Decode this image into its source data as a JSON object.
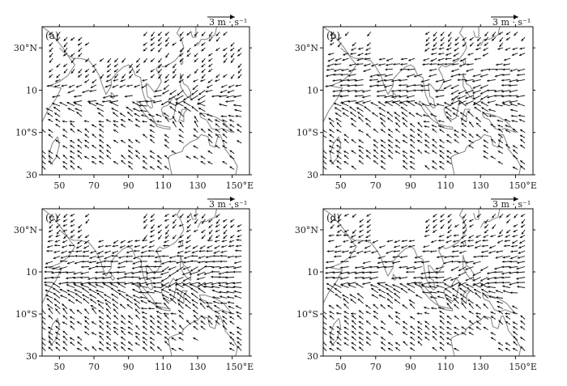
{
  "figure": {
    "panels": [
      {
        "label": "(a)",
        "reference_vector": "3 m · s⁻¹",
        "lon_ticks": [
          "50",
          "70",
          "90",
          "110",
          "130",
          "150°E"
        ],
        "lat_ticks": [
          "30°N",
          "10",
          "10°S",
          "30"
        ],
        "flow": {
          "westerly_band_lat": [
            -5,
            15
          ],
          "strength": 0.9,
          "coverage": 0.55
        }
      },
      {
        "label": "(b)",
        "reference_vector": "3 m · s⁻¹",
        "lon_ticks": [
          "50",
          "70",
          "90",
          "110",
          "130",
          "150°E"
        ],
        "lat_ticks": [
          "30°N",
          "10",
          "10°S",
          "30"
        ],
        "flow": {
          "westerly_band_lat": [
            -8,
            30
          ],
          "strength": 1.0,
          "coverage": 0.65
        }
      },
      {
        "label": "(c)",
        "reference_vector": "3 m · s⁻¹",
        "lon_ticks": [
          "50",
          "70",
          "90",
          "110",
          "130",
          "150°E"
        ],
        "lat_ticks": [
          "30°N",
          "10",
          "10°S",
          "30"
        ],
        "flow": {
          "westerly_band_lat": [
            -12,
            25
          ],
          "strength": 0.95,
          "coverage": 0.85
        }
      },
      {
        "label": "(d)",
        "reference_vector": "3 m · s⁻¹",
        "lon_ticks": [
          "50",
          "70",
          "90",
          "110",
          "130",
          "150°E"
        ],
        "lat_ticks": [
          "30°N",
          "10",
          "10°S",
          "30"
        ],
        "flow": {
          "westerly_band_lat": [
            -10,
            28
          ],
          "strength": 0.95,
          "coverage": 0.7
        }
      }
    ],
    "map_extent": {
      "lon": [
        40,
        160
      ],
      "lat": [
        -30,
        40
      ]
    },
    "colors": {
      "arrows": "#111111",
      "coastline": "#8a8a8a",
      "frame": "#111111"
    }
  }
}
